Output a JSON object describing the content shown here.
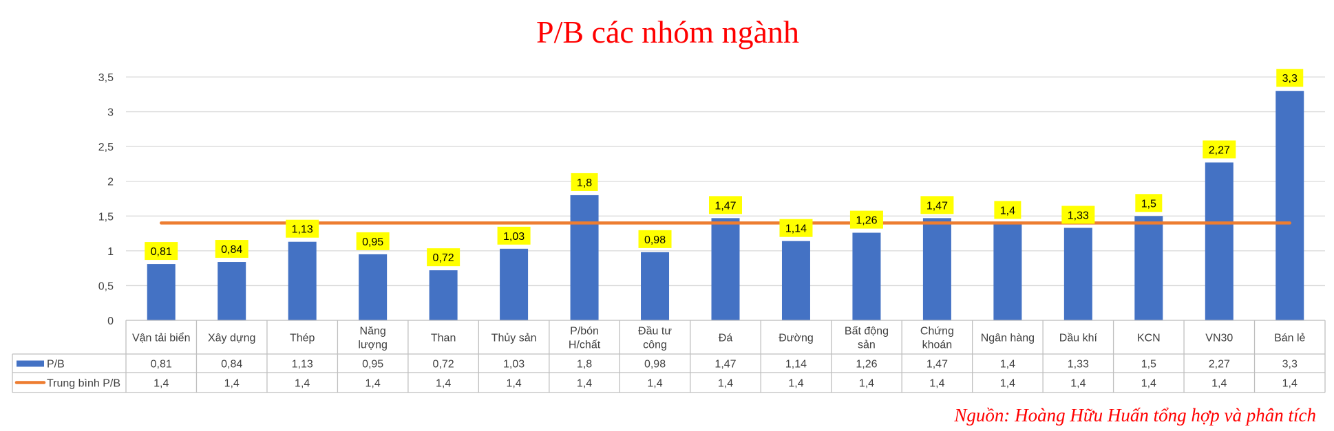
{
  "chart_data": {
    "type": "bar",
    "title": "P/B các nhóm ngành",
    "categories": [
      "Vận tải biển",
      "Xây dựng",
      "Thép",
      "Năng lượng",
      "Than",
      "Thủy sản",
      "P/bón H/chất",
      "Đầu tư công",
      "Đá",
      "Đường",
      "Bất động sản",
      "Chứng khoán",
      "Ngân hàng",
      "Dầu khí",
      "KCN",
      "VN30",
      "Bán lẻ"
    ],
    "category_labels": [
      [
        "Vận tải biển"
      ],
      [
        "Xây dựng"
      ],
      [
        "Thép"
      ],
      [
        "Năng",
        "lượng"
      ],
      [
        "Than"
      ],
      [
        "Thủy sản"
      ],
      [
        "P/bón",
        "H/chất"
      ],
      [
        "Đầu tư",
        "công"
      ],
      [
        "Đá"
      ],
      [
        "Đường"
      ],
      [
        "Bất động",
        "sản"
      ],
      [
        "Chứng",
        "khoán"
      ],
      [
        "Ngân hàng"
      ],
      [
        "Dầu khí"
      ],
      [
        "KCN"
      ],
      [
        "VN30"
      ],
      [
        "Bán lẻ"
      ]
    ],
    "series": [
      {
        "name": "P/B",
        "kind": "bar",
        "color": "#4472C4",
        "values": [
          0.81,
          0.84,
          1.13,
          0.95,
          0.72,
          1.03,
          1.8,
          0.98,
          1.47,
          1.14,
          1.26,
          1.47,
          1.4,
          1.33,
          1.5,
          2.27,
          3.3
        ],
        "labels": [
          "0,81",
          "0,84",
          "1,13",
          "0,95",
          "0,72",
          "1,03",
          "1,8",
          "0,98",
          "1,47",
          "1,14",
          "1,26",
          "1,47",
          "1,4",
          "1,33",
          "1,5",
          "2,27",
          "3,3"
        ]
      },
      {
        "name": "Trung bình P/B",
        "kind": "line",
        "color": "#ED7D31",
        "values": [
          1.4,
          1.4,
          1.4,
          1.4,
          1.4,
          1.4,
          1.4,
          1.4,
          1.4,
          1.4,
          1.4,
          1.4,
          1.4,
          1.4,
          1.4,
          1.4,
          1.4
        ],
        "labels": [
          "1,4",
          "1,4",
          "1,4",
          "1,4",
          "1,4",
          "1,4",
          "1,4",
          "1,4",
          "1,4",
          "1,4",
          "1,4",
          "1,4",
          "1,4",
          "1,4",
          "1,4",
          "1,4",
          "1,4"
        ]
      }
    ],
    "ylim": [
      0,
      3.5
    ],
    "yticks": [
      0,
      0.5,
      1,
      1.5,
      2,
      2.5,
      3,
      3.5
    ],
    "ytick_labels": [
      "0",
      "0,5",
      "1",
      "1,5",
      "2",
      "2,5",
      "3",
      "3,5"
    ],
    "grid": true,
    "data_table": true,
    "label_bg_color": "#FFFF00",
    "title_color": "#FF0000"
  },
  "source_note": "Nguồn: Hoàng Hữu Huấn tổng hợp và phân tích"
}
